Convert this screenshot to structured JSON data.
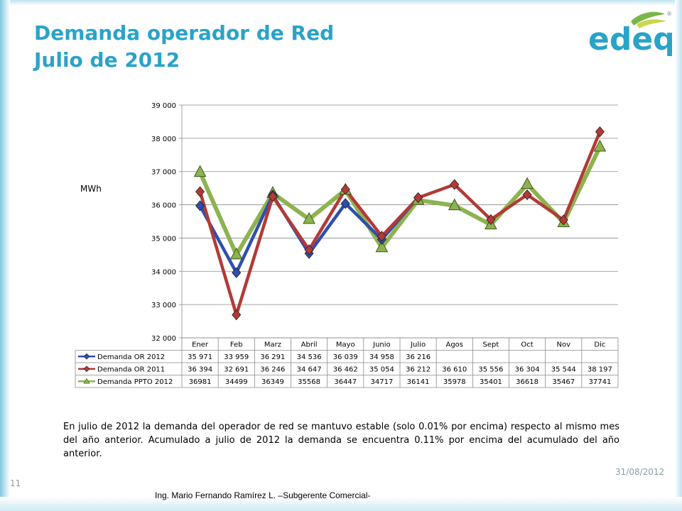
{
  "slide": {
    "title_line1": "Demanda operador de Red",
    "title_line2": "Julio de 2012",
    "logo_text": "edeq",
    "ylabel": "MWh",
    "body_text": "En julio de 2012 la demanda del operador de red se mantuvo estable (solo 0.01% por encima) respecto al mismo mes del año anterior.  Acumulado a julio de 2012 la demanda se encuentra 0.11% por encima del acumulado del año anterior.",
    "date": "31/08/2012",
    "page_number": "11",
    "footer": "Ing. Mario Fernando Ramírez L. –Subgerente Comercial-"
  },
  "colors": {
    "title": "#2aa3c9",
    "series_2012": "#2e4eb0",
    "series_2011": "#b23a36",
    "series_ppto": "#8db350"
  },
  "chart_data": {
    "type": "line",
    "title": "",
    "xlabel": "",
    "ylabel": "MWh",
    "ylim": [
      32000,
      39000
    ],
    "yticks": [
      32000,
      33000,
      34000,
      35000,
      36000,
      37000,
      38000,
      39000
    ],
    "ytick_labels": [
      "32 000",
      "33 000",
      "34 000",
      "35 000",
      "36 000",
      "37 000",
      "38 000",
      "39 000"
    ],
    "grid": true,
    "categories": [
      "Ener",
      "Feb",
      "Marz",
      "Abril",
      "Mayo",
      "Junio",
      "Julio",
      "Agos",
      "Sept",
      "Oct",
      "Nov",
      "Dic"
    ],
    "series": [
      {
        "name": "Demanda OR 2012",
        "marker": "diamond",
        "values": [
          35971,
          33959,
          36291,
          34536,
          36039,
          34958,
          36216,
          null,
          null,
          null,
          null,
          null
        ],
        "labels": [
          "35 971",
          "33 959",
          "36 291",
          "34 536",
          "36 039",
          "34 958",
          "36 216",
          "",
          "",
          "",
          "",
          ""
        ]
      },
      {
        "name": "Demanda OR 2011",
        "marker": "diamond",
        "values": [
          36394,
          32691,
          36246,
          34647,
          36462,
          35054,
          36212,
          36610,
          35556,
          36304,
          35544,
          38197
        ],
        "labels": [
          "36 394",
          "32 691",
          "36 246",
          "34 647",
          "36 462",
          "35 054",
          "36 212",
          "36 610",
          "35 556",
          "36 304",
          "35 544",
          "38 197"
        ]
      },
      {
        "name": "Demanda PPTO 2012",
        "marker": "triangle",
        "values": [
          36981,
          34499,
          36349,
          35568,
          36447,
          34717,
          36141,
          35978,
          35401,
          36618,
          35467,
          37741
        ],
        "labels": [
          "36981",
          "34499",
          "36349",
          "35568",
          "36447",
          "34717",
          "36141",
          "35978",
          "35401",
          "36618",
          "35467",
          "37741"
        ]
      }
    ]
  }
}
